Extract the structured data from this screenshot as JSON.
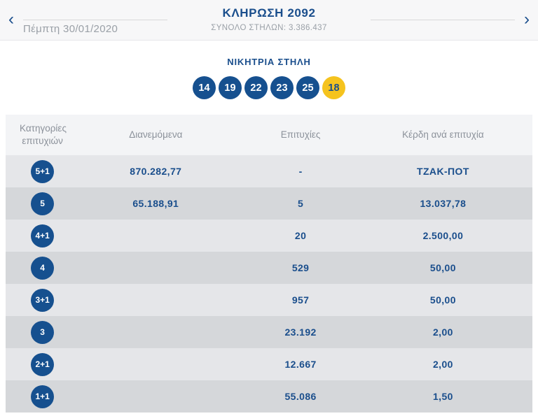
{
  "topbar": {
    "title": "ΚΛΗΡΩΣΗ 2092",
    "subtitle": "ΣΥΝΟΛΟ ΣΤΗΛΩΝ: 3.386.437",
    "prev_date": "Πέμπτη 30/01/2020",
    "prev_icon": "‹",
    "next_icon": "›"
  },
  "winning": {
    "title": "ΝΙΚΗΤΡΙΑ ΣΤΗΛΗ",
    "numbers": [
      "14",
      "19",
      "22",
      "23",
      "25"
    ],
    "bonus": "18"
  },
  "table": {
    "columns": [
      "Κατηγορίες επιτυχιών",
      "Διανεμόμενα",
      "Επιτυχίες",
      "Κέρδη ανά επιτυχία"
    ],
    "rows": [
      {
        "category": "5+1",
        "distributed": "870.282,77",
        "winners": "-",
        "prize": "ΤΖΑΚ-ΠΟΤ"
      },
      {
        "category": "5",
        "distributed": "65.188,91",
        "winners": "5",
        "prize": "13.037,78"
      },
      {
        "category": "4+1",
        "distributed": "",
        "winners": "20",
        "prize": "2.500,00"
      },
      {
        "category": "4",
        "distributed": "",
        "winners": "529",
        "prize": "50,00"
      },
      {
        "category": "3+1",
        "distributed": "",
        "winners": "957",
        "prize": "50,00"
      },
      {
        "category": "3",
        "distributed": "",
        "winners": "23.192",
        "prize": "2,00"
      },
      {
        "category": "2+1",
        "distributed": "",
        "winners": "12.667",
        "prize": "2,00"
      },
      {
        "category": "1+1",
        "distributed": "",
        "winners": "55.086",
        "prize": "1,50"
      }
    ]
  },
  "colors": {
    "brand_blue": "#16508f",
    "text_blue": "#1a4e8c",
    "bonus_yellow": "#f5c31e",
    "muted_gray": "#9aa0a7",
    "row_light": "#e5e6e9",
    "row_dark": "#d5d7da",
    "table_header_bg": "#f3f4f6"
  }
}
